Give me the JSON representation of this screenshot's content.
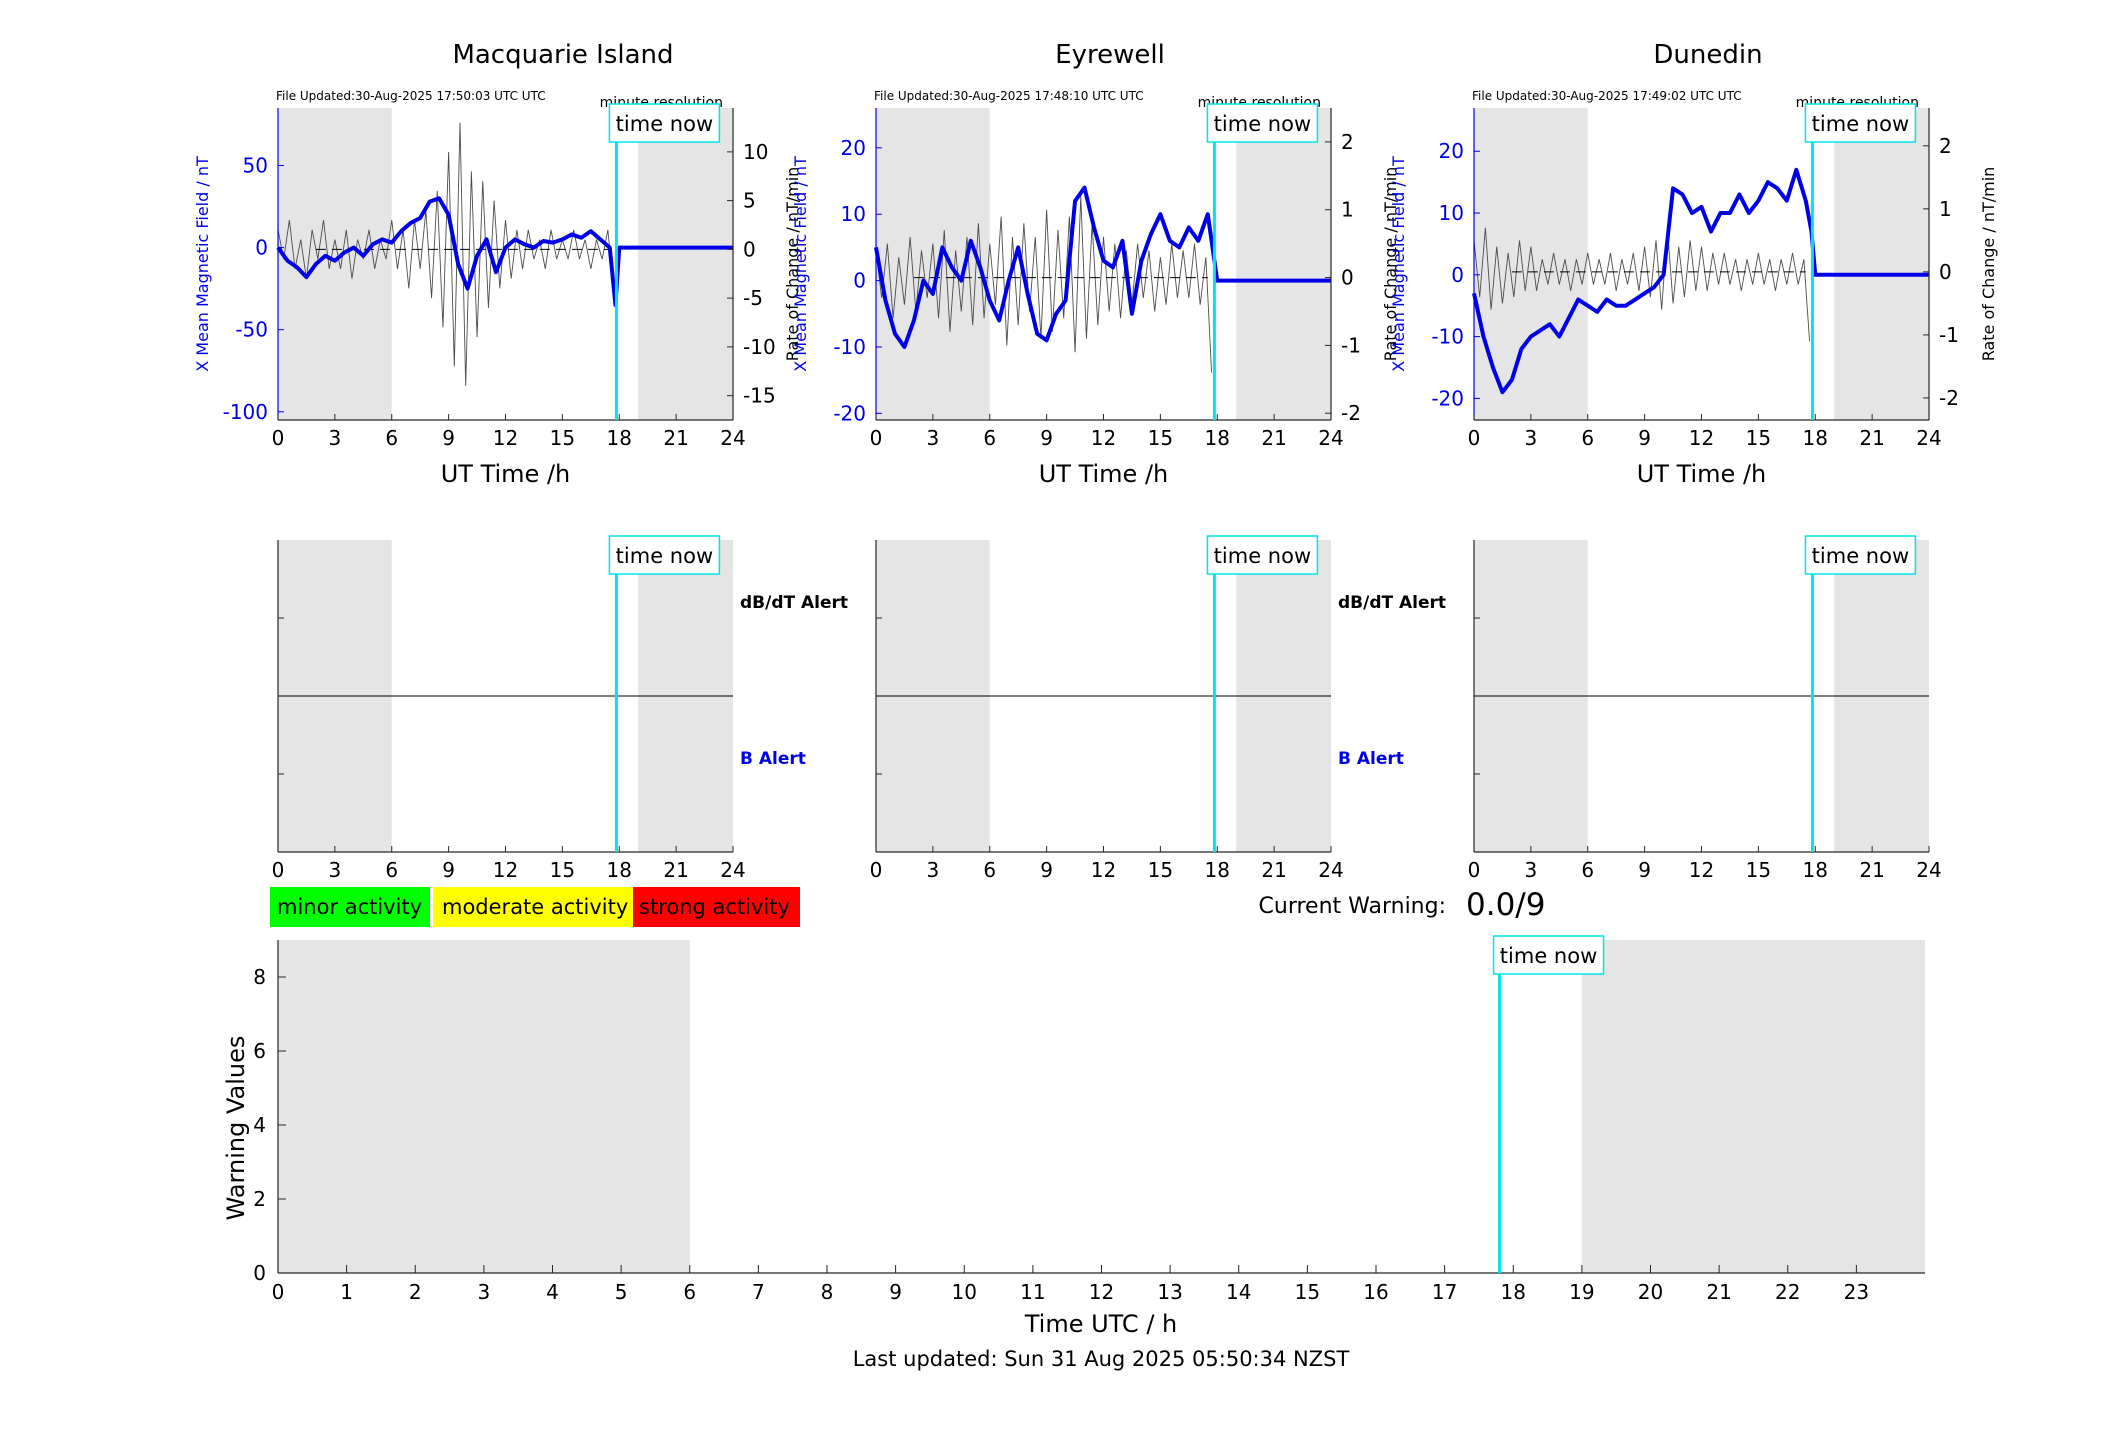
{
  "colors": {
    "field": "#0000e6",
    "rate": "#4d4d4d",
    "now_line": "#00e5e5",
    "night": "#e5e5e5",
    "minor": "#00ff00",
    "moderate": "#ffff00",
    "strong": "#ff0000"
  },
  "labels": {
    "file_updated_prefix": "File Updated:",
    "resolution": "minute resolution",
    "time_now": "time now",
    "ylabel_left": "X Mean Magnetic Field / nT",
    "ylabel_right": "Rate of Change / nT/min",
    "xlabel": "UT Time /h",
    "dbdt_alert": "dB/dT Alert",
    "b_alert": "B Alert",
    "minor": "minor activity",
    "moderate": "moderate activity",
    "strong": "strong activity",
    "current_warning": "Current Warning:",
    "current_warning_value": "0.0/9",
    "warn_ylabel": "Warning Values",
    "warn_xlabel": "Time UTC / h",
    "last_updated": "Last updated: Sun 31 Aug 2025 05:50:34 NZST"
  },
  "chart_data": [
    {
      "type": "line",
      "title": "Macquarie Island",
      "file_updated": "30-Aug-2025 17:50:03 UTC",
      "xlabel": "UT Time /h",
      "xlim": [
        0,
        24
      ],
      "xticks": [
        0,
        3,
        6,
        9,
        12,
        15,
        18,
        21,
        24
      ],
      "ylim": [
        -105,
        85
      ],
      "yticks": [
        -100,
        -50,
        0,
        50
      ],
      "ylabel": "X Mean Magnetic Field / nT",
      "y2lim": [
        -17.5,
        14.5
      ],
      "y2ticks": [
        -15,
        -10,
        -5,
        0,
        5,
        10
      ],
      "y2label": "Rate of Change / nT/min",
      "night": [
        [
          0,
          6
        ],
        [
          19,
          24
        ]
      ],
      "time_now": 17.85,
      "series": [
        {
          "role": "field",
          "x": [
            0,
            0.5,
            1,
            1.5,
            2,
            2.5,
            3,
            3.5,
            4,
            4.5,
            5,
            5.5,
            6,
            6.5,
            7,
            7.5,
            8,
            8.5,
            9,
            9.5,
            10,
            10.5,
            11,
            11.5,
            12,
            12.5,
            13,
            13.5,
            14,
            14.5,
            15,
            15.5,
            16,
            16.5,
            17,
            17.5,
            17.8,
            18,
            24
          ],
          "y": [
            0,
            -8,
            -12,
            -18,
            -10,
            -5,
            -8,
            -3,
            0,
            -5,
            2,
            5,
            3,
            10,
            15,
            18,
            28,
            30,
            20,
            -10,
            -25,
            -5,
            5,
            -15,
            0,
            5,
            2,
            0,
            4,
            3,
            5,
            8,
            6,
            10,
            5,
            0,
            -35,
            0,
            0
          ]
        },
        {
          "role": "rate",
          "x": [
            0,
            0.3,
            0.6,
            0.9,
            1.2,
            1.5,
            1.8,
            2.1,
            2.4,
            2.7,
            3,
            3.3,
            3.6,
            3.9,
            4.2,
            4.5,
            4.8,
            5.1,
            5.4,
            5.7,
            6,
            6.3,
            6.6,
            6.9,
            7.2,
            7.5,
            7.8,
            8.1,
            8.4,
            8.7,
            9,
            9.3,
            9.6,
            9.9,
            10.2,
            10.5,
            10.8,
            11.1,
            11.4,
            11.7,
            12,
            12.3,
            12.6,
            12.9,
            13.2,
            13.5,
            13.8,
            14.1,
            14.4,
            14.7,
            15,
            15.3,
            15.6,
            15.9,
            16.2,
            16.5,
            16.8,
            17.1,
            17.4,
            17.7
          ],
          "y": [
            2,
            -1,
            3,
            -2,
            1,
            -3,
            2,
            -1,
            3,
            -2,
            1,
            -2,
            2,
            -3,
            1,
            -1,
            2,
            -2,
            1,
            -1,
            3,
            -2,
            2,
            -4,
            3,
            -2,
            4,
            -5,
            6,
            -8,
            10,
            -12,
            13,
            -14,
            8,
            -9,
            7,
            -6,
            5,
            -4,
            3,
            -3,
            2,
            -2,
            2,
            -1,
            1,
            -2,
            2,
            -1,
            1,
            -1,
            2,
            -1,
            1,
            -2,
            1,
            -1,
            2,
            -4
          ]
        }
      ]
    },
    {
      "type": "line",
      "title": "Eyrewell",
      "file_updated": "30-Aug-2025 17:48:10 UTC",
      "xlabel": "UT Time /h",
      "xlim": [
        0,
        24
      ],
      "xticks": [
        0,
        3,
        6,
        9,
        12,
        15,
        18,
        21,
        24
      ],
      "ylim": [
        -21,
        26
      ],
      "yticks": [
        -20,
        -10,
        0,
        10,
        20
      ],
      "ylabel": "X Mean Magnetic Field / nT",
      "y2lim": [
        -2.1,
        2.5
      ],
      "y2ticks": [
        -2,
        -1,
        0,
        1,
        2
      ],
      "y2label": "Rate of Change / nT/min",
      "night": [
        [
          0,
          6
        ],
        [
          19,
          24
        ]
      ],
      "time_now": 17.85,
      "series": [
        {
          "role": "field",
          "x": [
            0,
            0.5,
            1,
            1.5,
            2,
            2.5,
            3,
            3.5,
            4,
            4.5,
            5,
            5.5,
            6,
            6.5,
            7,
            7.5,
            8,
            8.5,
            9,
            9.5,
            10,
            10.5,
            11,
            11.5,
            12,
            12.5,
            13,
            13.5,
            14,
            14.5,
            15,
            15.5,
            16,
            16.5,
            17,
            17.5,
            17.8,
            18,
            24
          ],
          "y": [
            5,
            -3,
            -8,
            -10,
            -6,
            0,
            -2,
            5,
            2,
            0,
            6,
            2,
            -3,
            -6,
            0,
            5,
            -2,
            -8,
            -9,
            -5,
            -3,
            12,
            14,
            8,
            3,
            2,
            6,
            -5,
            3,
            7,
            10,
            6,
            5,
            8,
            6,
            10,
            4,
            0,
            0
          ]
        },
        {
          "role": "rate",
          "x": [
            0,
            0.3,
            0.6,
            0.9,
            1.2,
            1.5,
            1.8,
            2.1,
            2.4,
            2.7,
            3,
            3.3,
            3.6,
            3.9,
            4.2,
            4.5,
            4.8,
            5.1,
            5.4,
            5.7,
            6,
            6.3,
            6.6,
            6.9,
            7.2,
            7.5,
            7.8,
            8.1,
            8.4,
            8.7,
            9,
            9.3,
            9.6,
            9.9,
            10.2,
            10.5,
            10.8,
            11.1,
            11.4,
            11.7,
            12,
            12.3,
            12.6,
            12.9,
            13.2,
            13.5,
            13.8,
            14.1,
            14.4,
            14.7,
            15,
            15.3,
            15.6,
            15.9,
            16.2,
            16.5,
            16.8,
            17.1,
            17.4,
            17.7
          ],
          "y": [
            0.4,
            -0.3,
            0.5,
            -0.6,
            0.3,
            -0.4,
            0.6,
            -0.5,
            0.4,
            -0.3,
            0.5,
            -0.6,
            0.7,
            -0.8,
            0.4,
            -0.5,
            0.6,
            -0.7,
            0.8,
            -0.6,
            0.5,
            -0.4,
            0.9,
            -1,
            0.6,
            -0.7,
            0.8,
            -0.5,
            0.6,
            -0.9,
            1,
            -0.8,
            0.7,
            -0.6,
            0.9,
            -1.1,
            1.2,
            -0.9,
            0.8,
            -0.7,
            0.6,
            -0.5,
            0.5,
            -0.6,
            0.4,
            -0.4,
            0.5,
            -0.3,
            0.4,
            -0.5,
            0.3,
            -0.4,
            0.5,
            -0.3,
            0.4,
            -0.3,
            0.5,
            -0.4,
            0.3,
            -1.4
          ]
        }
      ]
    },
    {
      "type": "line",
      "title": "Dunedin",
      "file_updated": "30-Aug-2025 17:49:02 UTC",
      "xlabel": "UT Time /h",
      "xlim": [
        0,
        24
      ],
      "xticks": [
        0,
        3,
        6,
        9,
        12,
        15,
        18,
        21,
        24
      ],
      "ylim": [
        -23.5,
        27
      ],
      "yticks": [
        -20,
        -10,
        0,
        10,
        20
      ],
      "ylabel": "X Mean Magnetic Field / nT",
      "y2lim": [
        -2.35,
        2.6
      ],
      "y2ticks": [
        -2,
        -1,
        0,
        1,
        2
      ],
      "y2label": "Rate of Change / nT/min",
      "night": [
        [
          0,
          6
        ],
        [
          19,
          24
        ]
      ],
      "time_now": 17.85,
      "series": [
        {
          "role": "field",
          "x": [
            0,
            0.5,
            1,
            1.5,
            2,
            2.5,
            3,
            3.5,
            4,
            4.5,
            5,
            5.5,
            6,
            6.5,
            7,
            7.5,
            8,
            8.5,
            9,
            9.5,
            10,
            10.5,
            11,
            11.5,
            12,
            12.5,
            13,
            13.5,
            14,
            14.5,
            15,
            15.5,
            16,
            16.5,
            17,
            17.5,
            17.8,
            18,
            24
          ],
          "y": [
            -3,
            -10,
            -15,
            -19,
            -17,
            -12,
            -10,
            -9,
            -8,
            -10,
            -7,
            -4,
            -5,
            -6,
            -4,
            -5,
            -5,
            -4,
            -3,
            -2,
            0,
            14,
            13,
            10,
            11,
            7,
            10,
            10,
            13,
            10,
            12,
            15,
            14,
            12,
            17,
            12,
            7,
            0,
            0
          ]
        },
        {
          "role": "rate",
          "x": [
            0,
            0.3,
            0.6,
            0.9,
            1.2,
            1.5,
            1.8,
            2.1,
            2.4,
            2.7,
            3,
            3.3,
            3.6,
            3.9,
            4.2,
            4.5,
            4.8,
            5.1,
            5.4,
            5.7,
            6,
            6.3,
            6.6,
            6.9,
            7.2,
            7.5,
            7.8,
            8.1,
            8.4,
            8.7,
            9,
            9.3,
            9.6,
            9.9,
            10.2,
            10.5,
            10.8,
            11.1,
            11.4,
            11.7,
            12,
            12.3,
            12.6,
            12.9,
            13.2,
            13.5,
            13.8,
            14.1,
            14.4,
            14.7,
            15,
            15.3,
            15.6,
            15.9,
            16.2,
            16.5,
            16.8,
            17.1,
            17.4,
            17.7
          ],
          "y": [
            0.5,
            -0.4,
            0.7,
            -0.6,
            0.4,
            -0.5,
            0.3,
            -0.4,
            0.5,
            -0.3,
            0.4,
            -0.3,
            0.2,
            -0.2,
            0.3,
            -0.2,
            0.2,
            -0.3,
            0.2,
            -0.2,
            0.3,
            -0.2,
            0.2,
            -0.2,
            0.3,
            -0.3,
            0.2,
            -0.2,
            0.3,
            -0.3,
            0.4,
            -0.4,
            0.5,
            -0.6,
            0.7,
            -0.5,
            0.4,
            -0.4,
            0.5,
            -0.3,
            0.4,
            -0.3,
            0.3,
            -0.2,
            0.3,
            -0.2,
            0.2,
            -0.3,
            0.2,
            -0.2,
            0.3,
            -0.2,
            0.2,
            -0.3,
            0.2,
            -0.2,
            0.3,
            -0.2,
            0.2,
            -1.1
          ]
        }
      ]
    },
    {
      "type": "line",
      "role": "alert",
      "xlim": [
        0,
        24
      ],
      "xticks": [
        0,
        3,
        6,
        9,
        12,
        15,
        18,
        21,
        24
      ],
      "night": [
        [
          0,
          6
        ],
        [
          19,
          24
        ]
      ],
      "time_now": 17.85
    },
    {
      "type": "line",
      "role": "alert",
      "xlim": [
        0,
        24
      ],
      "xticks": [
        0,
        3,
        6,
        9,
        12,
        15,
        18,
        21,
        24
      ],
      "night": [
        [
          0,
          6
        ],
        [
          19,
          24
        ]
      ],
      "time_now": 17.85
    },
    {
      "type": "line",
      "role": "alert",
      "xlim": [
        0,
        24
      ],
      "xticks": [
        0,
        3,
        6,
        9,
        12,
        15,
        18,
        21,
        24
      ],
      "night": [
        [
          0,
          6
        ],
        [
          19,
          24
        ]
      ],
      "time_now": 17.85
    },
    {
      "type": "line",
      "role": "warning",
      "xlabel": "Time UTC / h",
      "ylabel": "Warning Values",
      "xlim": [
        0,
        24
      ],
      "xticks": [
        0,
        1,
        2,
        3,
        4,
        5,
        6,
        7,
        8,
        9,
        10,
        11,
        12,
        13,
        14,
        15,
        16,
        17,
        18,
        19,
        20,
        21,
        22,
        23
      ],
      "ylim": [
        0,
        9
      ],
      "yticks": [
        0,
        2,
        4,
        6,
        8
      ],
      "night": [
        [
          0,
          6
        ],
        [
          19,
          24
        ]
      ],
      "time_now": 17.8
    }
  ]
}
